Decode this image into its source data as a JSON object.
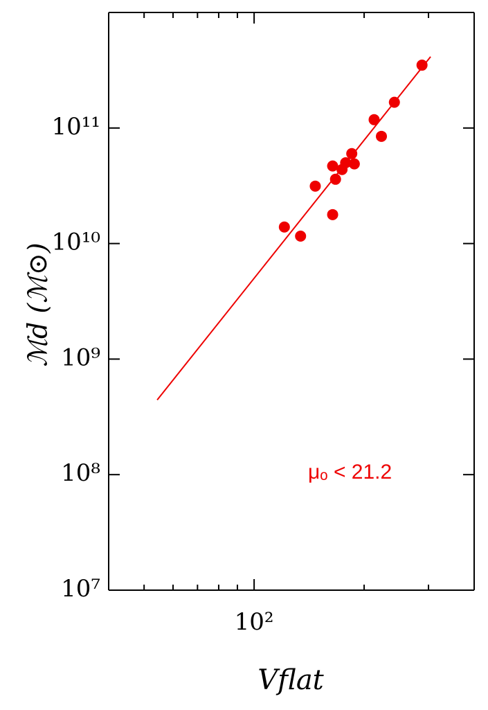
{
  "chart_data": {
    "type": "scatter",
    "xlabel": "Vflat",
    "ylabel": "ℳd (ℳ⊙)",
    "annotation": "μₒ < 21.2",
    "xscale": "log",
    "yscale": "log",
    "xlim": [
      40,
      400
    ],
    "ylim": [
      10000000,
      1000000000000
    ],
    "xticks": [
      {
        "value": 100,
        "label": "10²"
      }
    ],
    "xminorticks": [
      40,
      50,
      60,
      70,
      80,
      90,
      200,
      300,
      400
    ],
    "yticks": [
      {
        "value": 10000000,
        "label": "10⁷"
      },
      {
        "value": 100000000,
        "label": "10⁸"
      },
      {
        "value": 1000000000,
        "label": "10⁹"
      },
      {
        "value": 10000000000,
        "label": "10¹⁰"
      },
      {
        "value": 100000000000,
        "label": "10¹¹"
      }
    ],
    "color": "#ee0000",
    "series": [
      {
        "x": [
          121,
          134,
          147,
          164,
          164,
          167,
          174,
          178,
          185,
          188,
          213,
          223,
          242,
          288
        ],
        "values": [
          13900000000,
          11600000000,
          31400000000,
          46900000000,
          17800000000,
          36000000000,
          43700000000,
          50000000000,
          60000000000,
          48900000000,
          118000000000,
          84700000000,
          167000000000,
          350000000000
        ]
      }
    ],
    "fit": {
      "x": [
        54.3,
        304
      ],
      "values": [
        443000000,
        414000000000
      ]
    }
  }
}
